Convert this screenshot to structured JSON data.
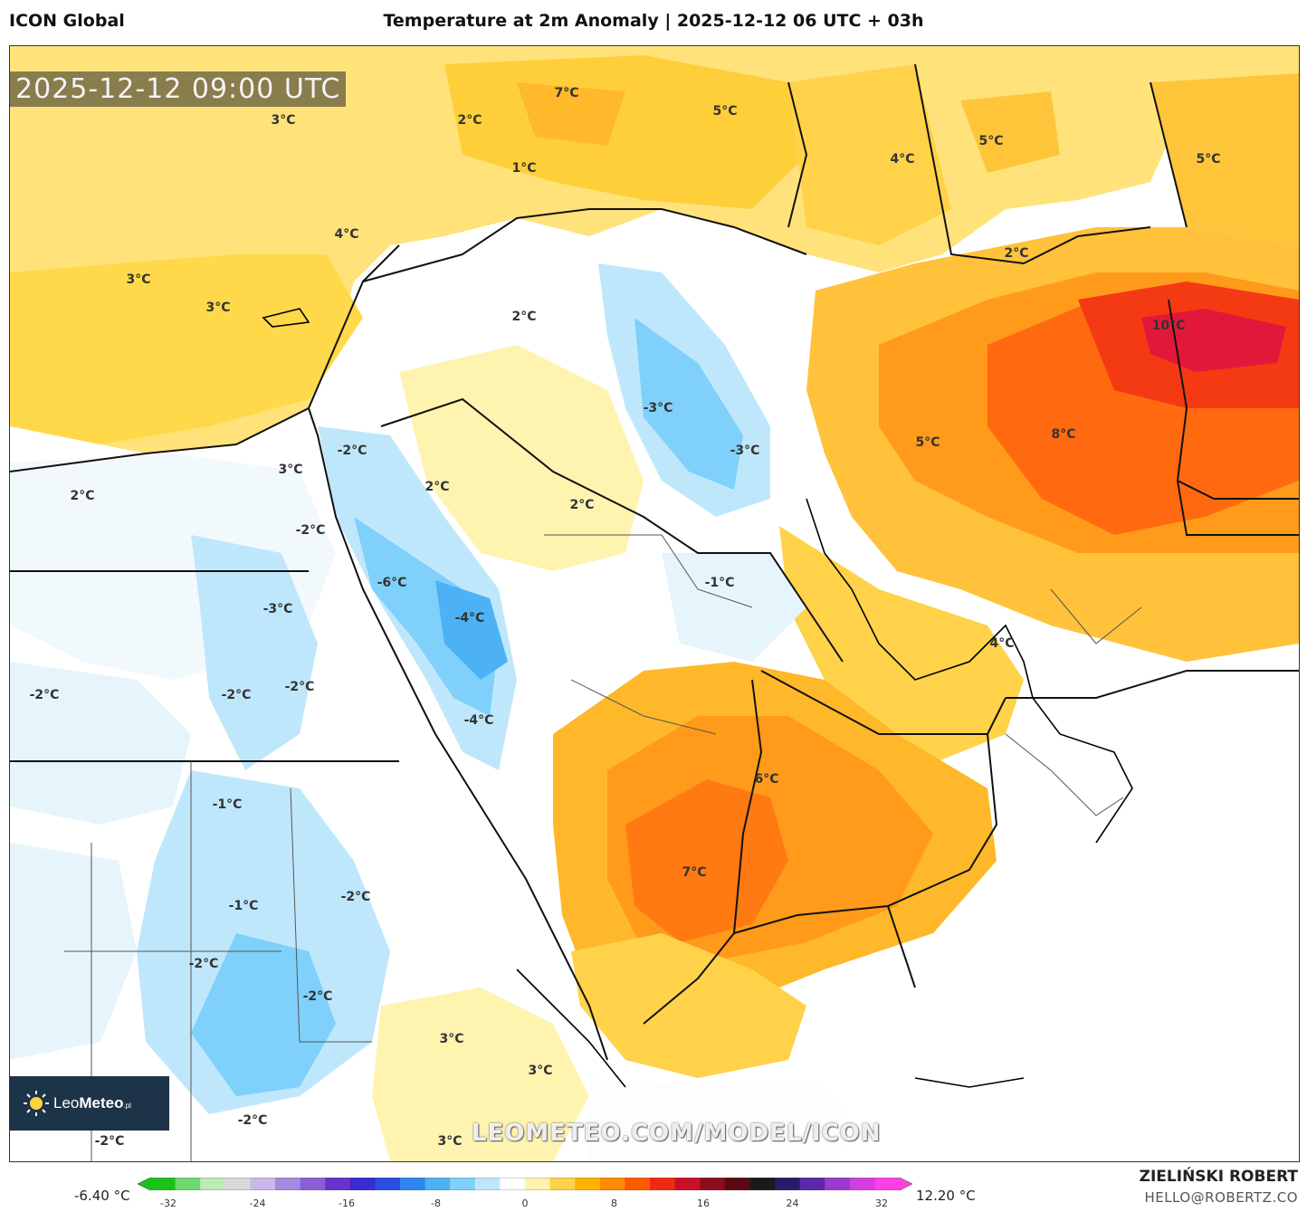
{
  "header": {
    "model": "ICON Global",
    "title": "Temperature at 2m Anomaly | 2025-12-12 06 UTC + 03h"
  },
  "map": {
    "valid_time": "2025-12-12 09:00 UTC",
    "watermark": "LEOMETEO.COM/MODEL/ICON",
    "labels": [
      "7°C",
      "2°C",
      "3°C",
      "1°C",
      "4°C",
      "5°C",
      "4°C",
      "5°C",
      "5°C",
      "2°C",
      "3°C",
      "3°C",
      "2°C",
      "10°C",
      "-3°C",
      "-3°C",
      "-2°C",
      "8°C",
      "5°C",
      "3°C",
      "2°C",
      "2°C",
      "2°C",
      "-2°C",
      "-1°C",
      "-6°C",
      "-3°C",
      "-4°C",
      "4°C",
      "-2°C",
      "-2°C",
      "-2°C",
      "-4°C",
      "6°C",
      "-1°C",
      "7°C",
      "-1°C",
      "-2°C",
      "-2°C",
      "-2°C",
      "3°C",
      "3°C",
      "-2°C",
      "-2°C",
      "3°C"
    ]
  },
  "logo": {
    "brand": "Leo",
    "brand_bold": "Meteo",
    "suffix": ".pl"
  },
  "colorbar": {
    "min_label": "-6.40 °C",
    "max_label": "12.20 °C",
    "ticks": [
      "-32",
      "-24",
      "-16",
      "-8",
      "0",
      "8",
      "16",
      "24",
      "32"
    ],
    "colors": [
      "#19c219",
      "#6fd96f",
      "#bdebb5",
      "#d9d9d9",
      "#c8b8ea",
      "#a78ae0",
      "#8a5fd6",
      "#6a32c8",
      "#3a2bd0",
      "#2b4ee0",
      "#2f86ee",
      "#4cb2f5",
      "#7fd0fa",
      "#bfe7fb",
      "#ffffff",
      "#fff3b0",
      "#ffd24a",
      "#ffb300",
      "#ff8c00",
      "#ff5a00",
      "#f02a10",
      "#c8102a",
      "#8f0c1e",
      "#5a0a12",
      "#1a1a1a",
      "#2a1a6a",
      "#5a2aa8",
      "#9a3ad0",
      "#d23ee0",
      "#ff3fe6"
    ]
  },
  "credit": {
    "author": "ZIELIŃSKI ROBERT",
    "email": "HELLO@ROBERTZ.CO"
  }
}
